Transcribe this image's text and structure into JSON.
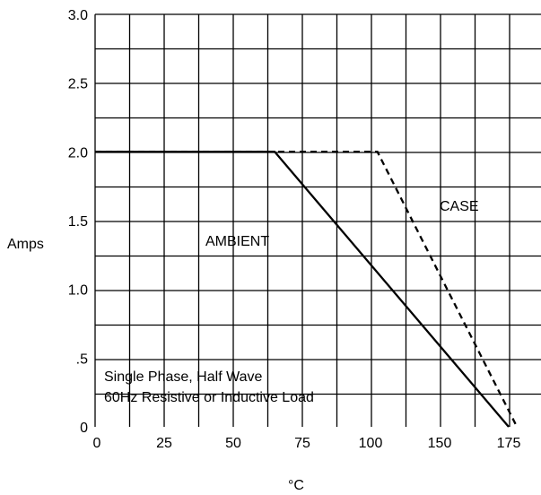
{
  "chart_data": {
    "type": "line",
    "title": "",
    "xlabel": "°C",
    "ylabel": "Amps",
    "x_tick_labels": [
      "0",
      "25",
      "50",
      "75",
      "100",
      "150",
      "175"
    ],
    "y_tick_labels": [
      "0",
      ".5",
      "1.0",
      "1.5",
      "2.0",
      "2.5",
      "3.0"
    ],
    "ylim": [
      0,
      3.0
    ],
    "grid": true,
    "series": [
      {
        "name": "AMBIENT",
        "style": "solid",
        "color": "#000000",
        "points": [
          [
            0,
            2.0
          ],
          [
            65,
            2.0
          ],
          [
            175,
            0
          ]
        ]
      },
      {
        "name": "CASE",
        "style": "dashed",
        "color": "#000000",
        "points": [
          [
            0,
            2.0
          ],
          [
            105,
            2.0
          ],
          [
            178,
            0
          ]
        ]
      }
    ],
    "annotations": {
      "ambient": "AMBIENT",
      "case": "CASE",
      "note_line1": "Single Phase, Half Wave",
      "note_line2": "60Hz Resistive or Inductive Load"
    }
  }
}
